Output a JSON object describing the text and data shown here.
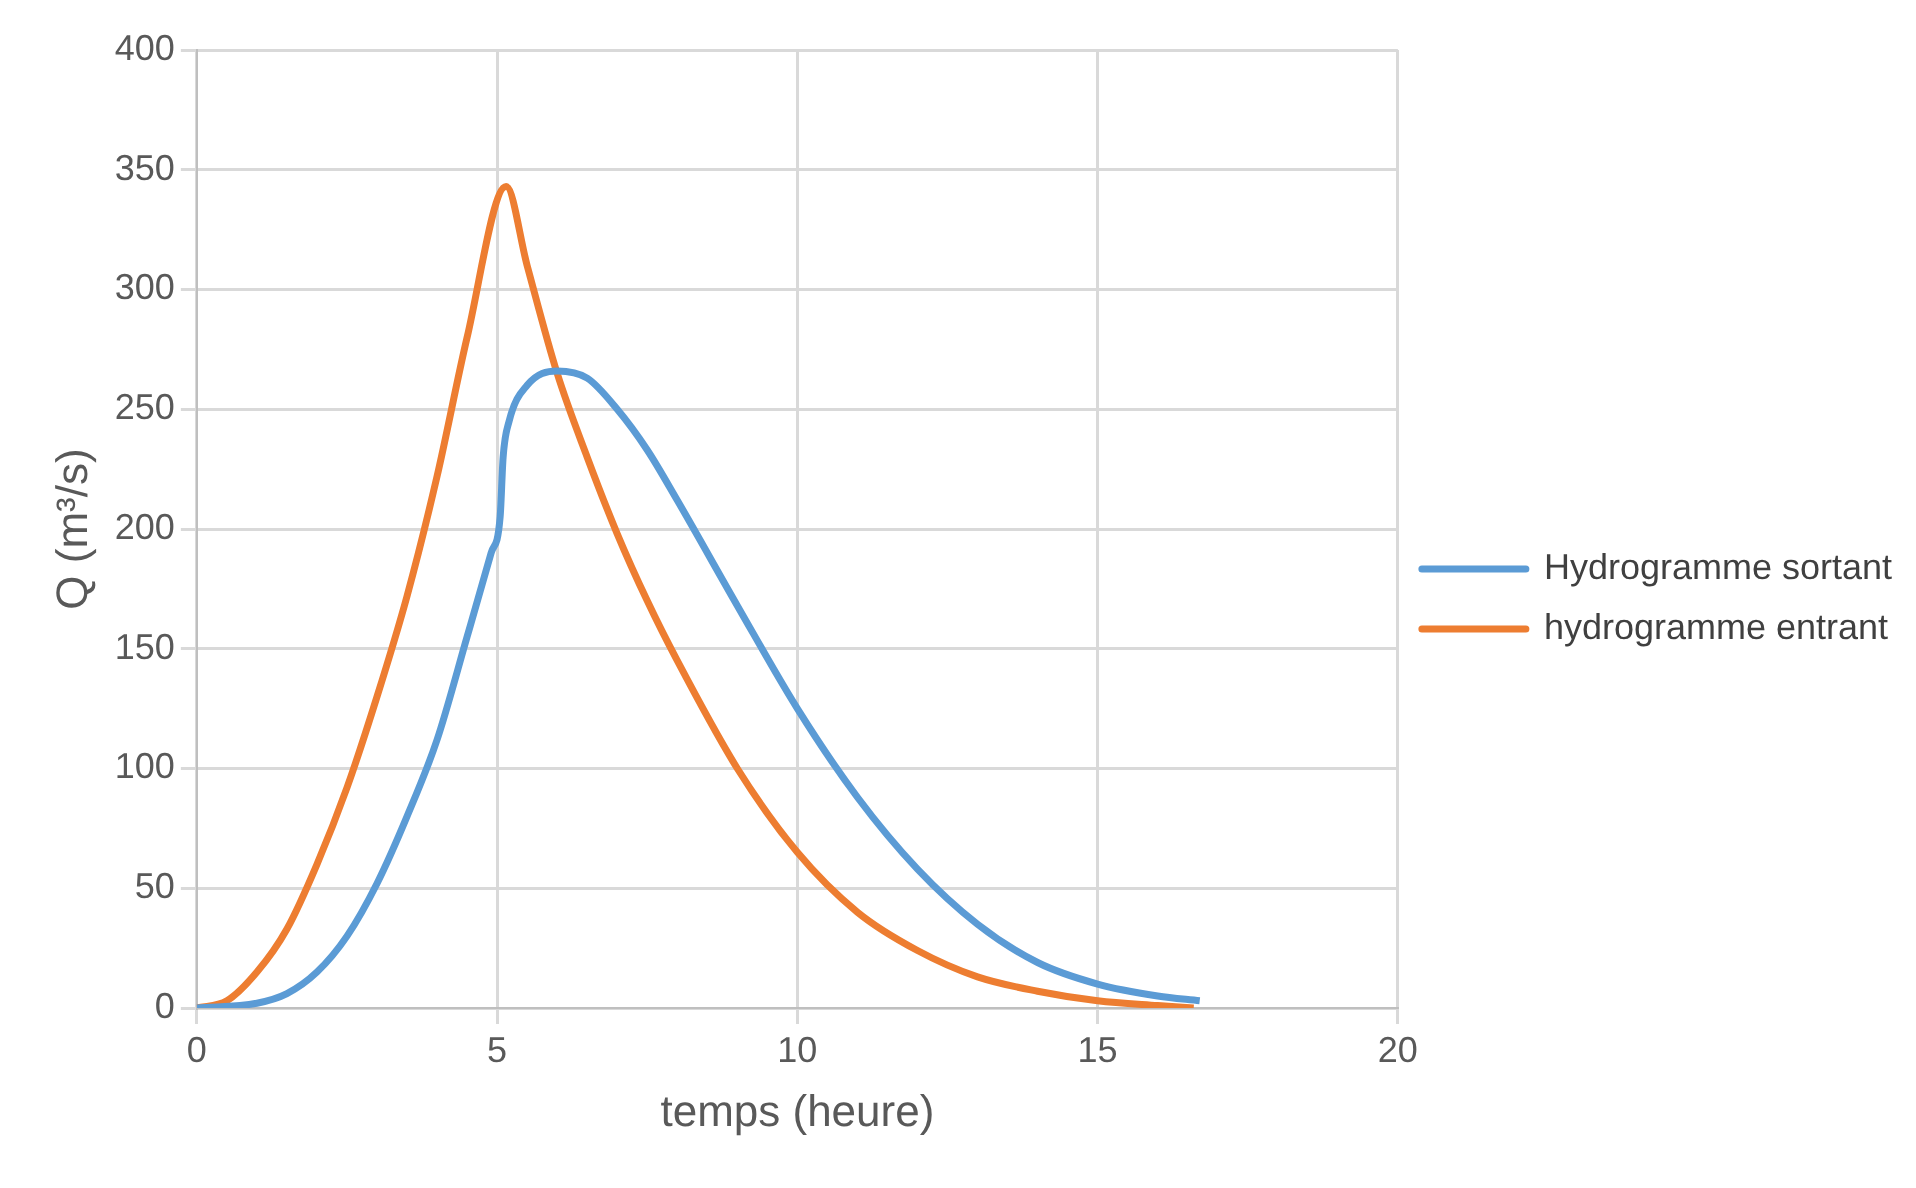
{
  "chart_data": {
    "type": "line",
    "xlabel": "temps (heure)",
    "ylabel": "Q (m³/s)",
    "xlim": [
      0,
      20
    ],
    "xticks": [
      0,
      5,
      10,
      15,
      20
    ],
    "ylim": [
      0,
      400
    ],
    "yticks": [
      0,
      50,
      100,
      150,
      200,
      250,
      300,
      350,
      400
    ],
    "grid": true,
    "legend": "right",
    "marker": "none",
    "line_style": "solid",
    "series": [
      {
        "name": "Hydrogramme sortant",
        "color": "#5b9bd5",
        "x": [
          0,
          1,
          1.5,
          2,
          2.5,
          3,
          3.5,
          4,
          4.5,
          4.9,
          5.05,
          5.1,
          5.2,
          5.5,
          6,
          6.5,
          7,
          7.5,
          8,
          9,
          10,
          11,
          12,
          13,
          14,
          15,
          16,
          16.7
        ],
        "values": [
          0,
          2,
          6,
          15,
          30,
          52,
          80,
          112,
          155,
          190,
          205,
          230,
          245,
          260,
          266,
          263,
          250,
          233,
          212,
          168,
          125,
          88,
          58,
          35,
          19,
          10,
          5,
          3
        ]
      },
      {
        "name": "hydrogramme entrant",
        "color": "#ed7d31",
        "x": [
          0,
          0.5,
          1,
          1.5,
          2,
          2.5,
          3,
          3.5,
          4,
          4.5,
          5.15,
          5.5,
          6,
          6.5,
          7,
          7.5,
          8,
          9,
          10,
          11,
          12,
          13,
          14,
          15,
          16,
          16.6
        ],
        "values": [
          0,
          3,
          15,
          33,
          60,
          92,
          130,
          172,
          222,
          280,
          343,
          310,
          265,
          230,
          198,
          170,
          145,
          100,
          65,
          40,
          24,
          13,
          7,
          3,
          1,
          0
        ]
      }
    ]
  }
}
